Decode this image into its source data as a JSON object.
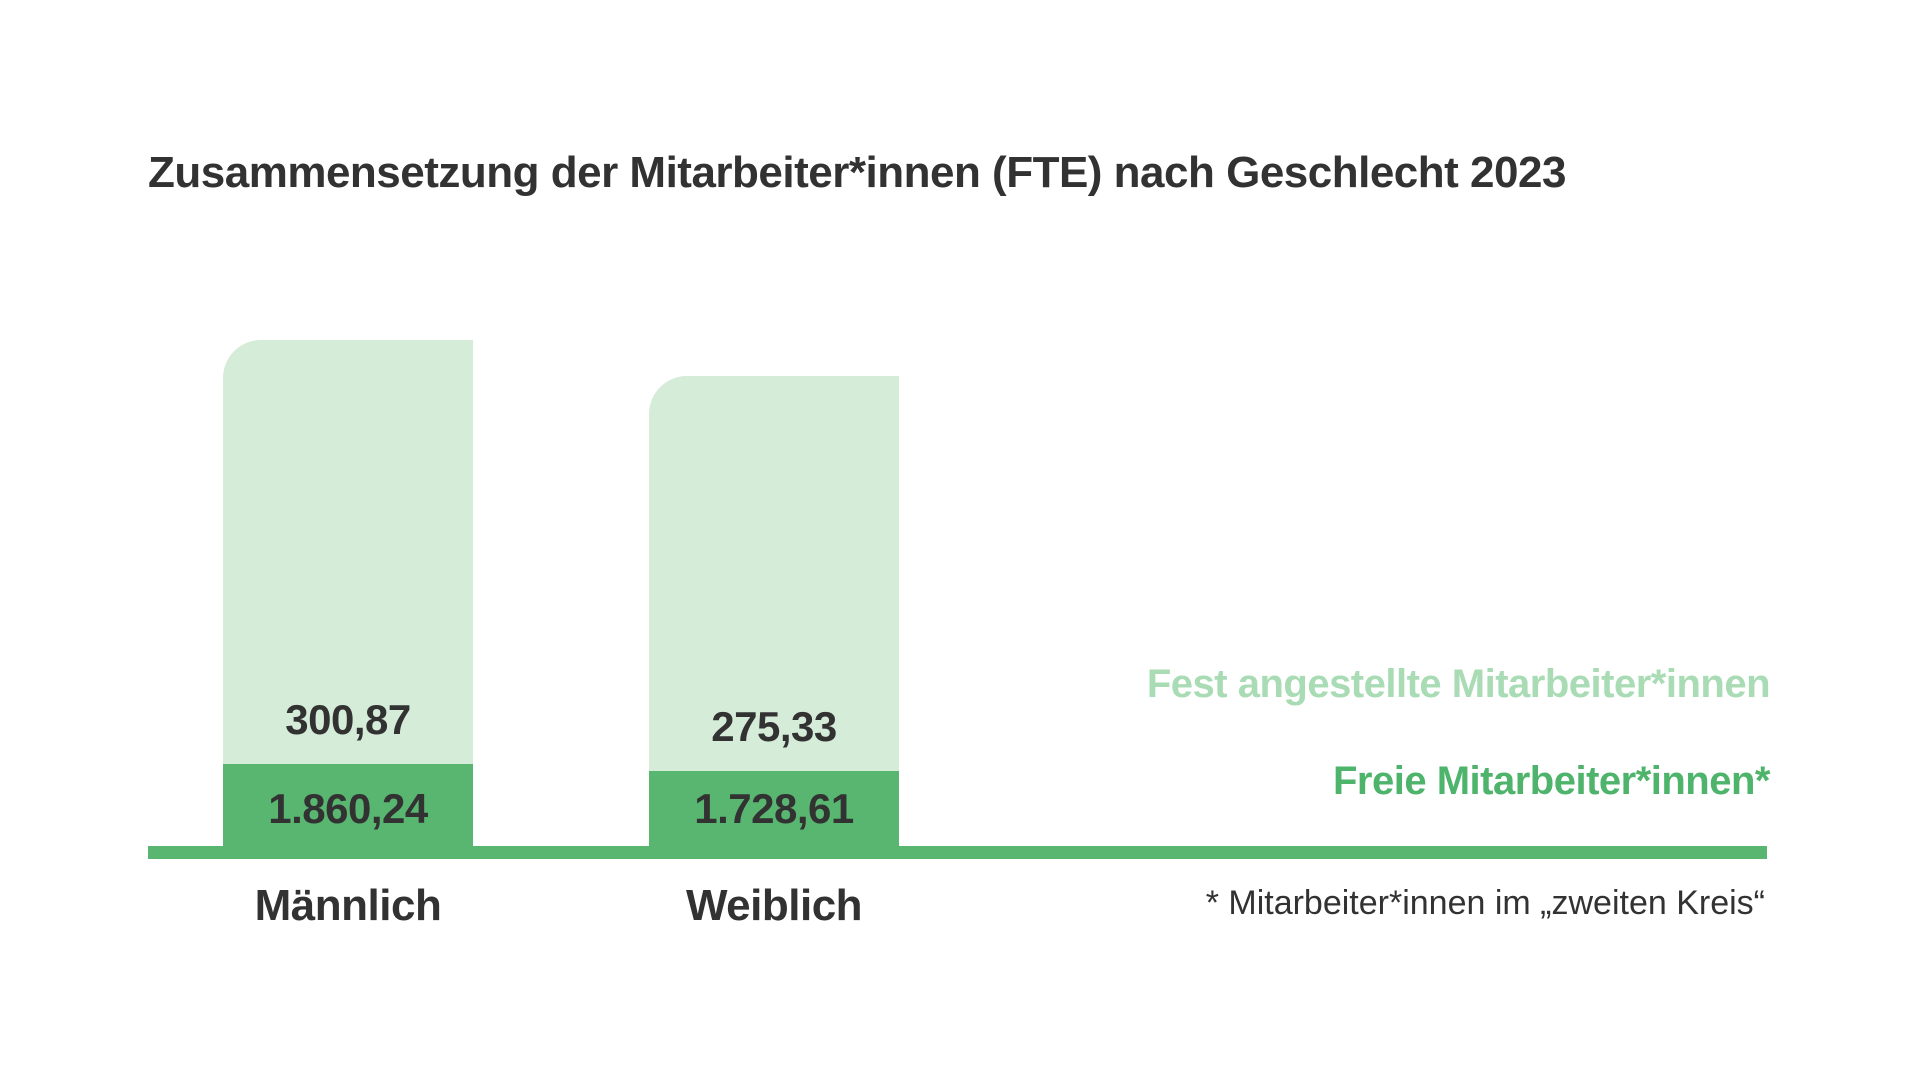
{
  "chart_data": {
    "type": "bar",
    "stacked": true,
    "title": "Zusammensetzung der Mitarbeiter*innen (FTE) nach Geschlecht 2023",
    "categories": [
      "Männlich",
      "Weiblich"
    ],
    "series": [
      {
        "name": "Fest angestellte Mitarbeiter*innen",
        "values": [
          1559.37,
          1453.28
        ],
        "color": "#d5ecd9"
      },
      {
        "name": "Freie Mitarbeiter*innen*",
        "values": [
          300.87,
          275.33
        ],
        "color": "#58b671"
      }
    ],
    "totals": [
      1860.24,
      1728.61
    ],
    "value_labels": {
      "totals": [
        "1.860,24",
        "1.728,61"
      ],
      "freie": [
        "300,87",
        "275,33"
      ]
    },
    "footnote": "* Mitarbeiter*innen im „zweiten Kreis“",
    "axis": {
      "baseline_color": "#58b671",
      "grid": false,
      "y_axis_visible": false,
      "ylim": [
        0,
        1860.24
      ]
    },
    "legend": {
      "position": "right",
      "entries": [
        "Fest angestellte Mitarbeiter*innen",
        "Freie Mitarbeiter*innen*"
      ]
    },
    "colors": {
      "text": "#323232",
      "fest_fill": "#d5ecd9",
      "freie_fill": "#58b671",
      "legend_fest_text": "#a9dcb5",
      "legend_freie_text": "#4eb36b"
    }
  }
}
